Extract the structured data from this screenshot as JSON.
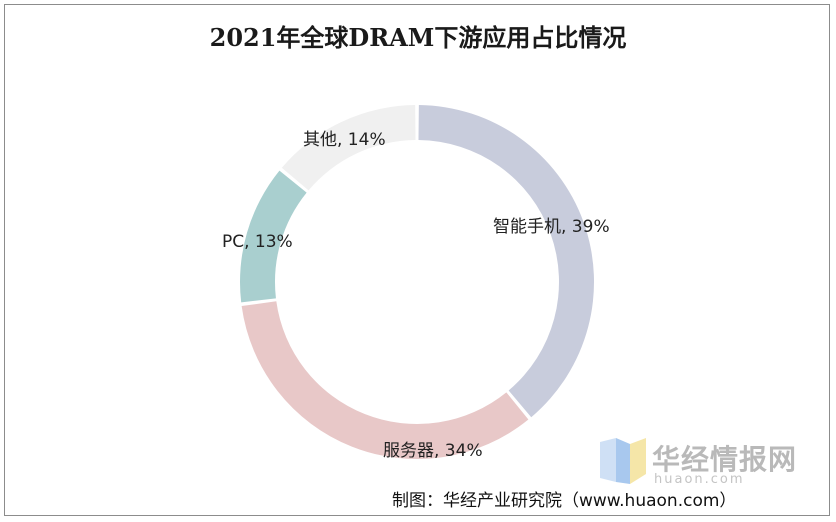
{
  "chart_data": {
    "type": "pie",
    "variant": "donut",
    "title": "2021年全球DRAM下游应用占比情况",
    "categories": [
      "智能手机",
      "服务器",
      "PC",
      "其他"
    ],
    "values": [
      39,
      34,
      13,
      14
    ],
    "labels": [
      "智能手机, 39%",
      "服务器, 34%",
      "PC, 13%",
      "其他, 14%"
    ],
    "colors": [
      "#c8ccdc",
      "#e8c8c8",
      "#a9cfcf",
      "#f0f0f0"
    ],
    "legend": "none"
  },
  "watermark": {
    "name": "华经情报网",
    "domain": "huaon.com"
  },
  "source": "制图：华经产业研究院（www.huaon.com）"
}
